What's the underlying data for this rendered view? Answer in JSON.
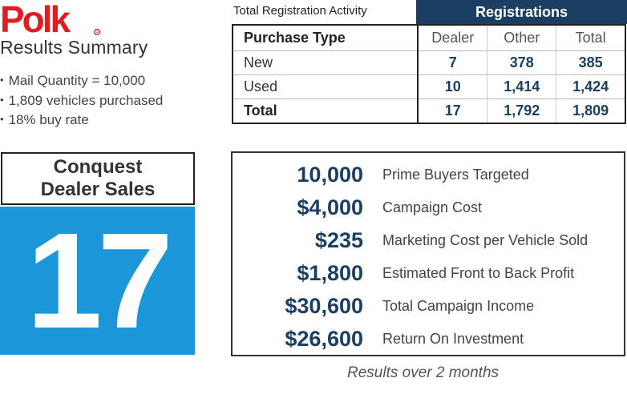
{
  "logo": {
    "text": "Polk"
  },
  "summary": {
    "title": "Results Summary",
    "bullets": [
      "Mail Quantity = 10,000",
      "1,809 vehicles purchased",
      "18% buy rate"
    ]
  },
  "registration": {
    "caption": "Total Registration Activity",
    "group_header": "Registrations",
    "columns": [
      "Purchase Type",
      "Dealer",
      "Other",
      "Total"
    ],
    "rows": [
      {
        "type": "New",
        "dealer": "7",
        "other": "378",
        "total": "385"
      },
      {
        "type": "Used",
        "dealer": "10",
        "other": "1,414",
        "total": "1,424"
      },
      {
        "type": "Total",
        "dealer": "17",
        "other": "1,792",
        "total": "1,809"
      }
    ]
  },
  "conquest": {
    "label_line1": "Conquest",
    "label_line2": "Dealer Sales",
    "value": "17",
    "color": "#1a97d9"
  },
  "metrics": [
    {
      "value": "10,000",
      "label": "Prime Buyers Targeted"
    },
    {
      "value": "$4,000",
      "label": "Campaign Cost"
    },
    {
      "value": "$235",
      "label": "Marketing Cost per Vehicle Sold"
    },
    {
      "value": "$1,800",
      "label": "Estimated Front to Back Profit"
    },
    {
      "value": "$30,600",
      "label": "Total Campaign Income"
    },
    {
      "value": "$26,600",
      "label": "Return On Investment"
    }
  ],
  "footnote": "Results over 2 months",
  "colors": {
    "brand_red": "#e31b23",
    "navy": "#1b3f63",
    "blue": "#1a97d9"
  }
}
